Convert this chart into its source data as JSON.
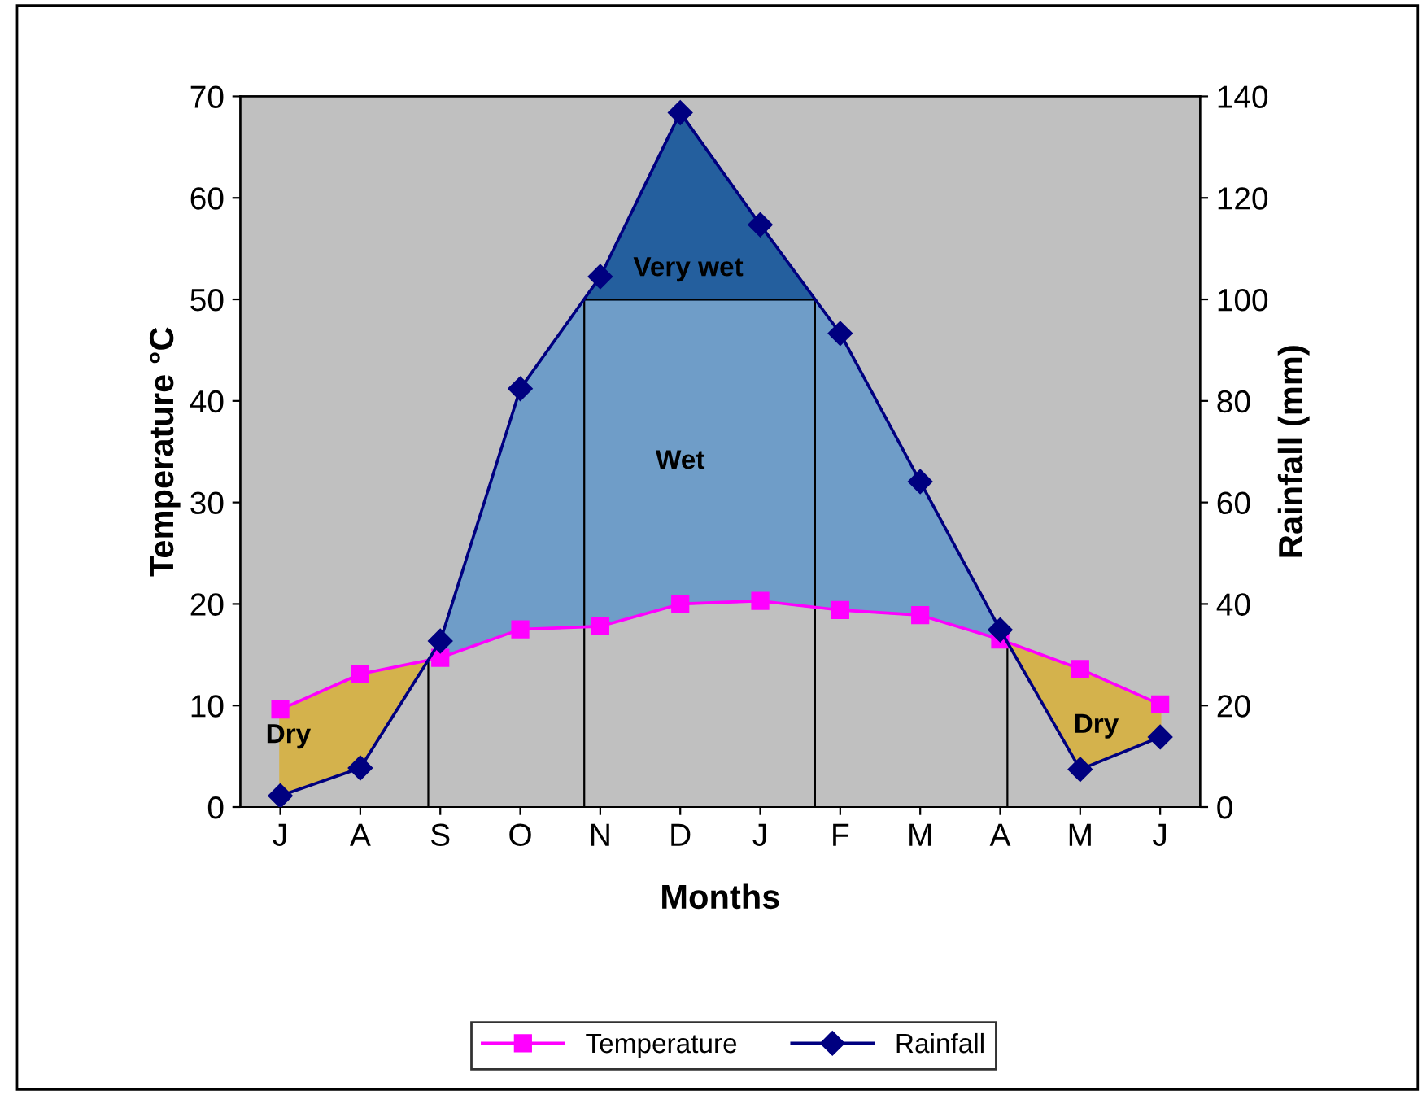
{
  "chart_data": {
    "type": "line",
    "xlabel": "Months",
    "ylabel": "Temperature °C",
    "y2label": "Rainfall (mm)",
    "categories": [
      "J",
      "A",
      "S",
      "O",
      "N",
      "D",
      "J",
      "F",
      "M",
      "A",
      "M",
      "J"
    ],
    "series": [
      {
        "name": "Temperature",
        "color": "#ff00ff",
        "marker": "square",
        "values": [
          9.6,
          13.1,
          14.7,
          17.5,
          17.8,
          20.0,
          20.3,
          19.4,
          18.9,
          16.5,
          13.6,
          10.1
        ]
      },
      {
        "name": "Rainfall",
        "color": "#000080",
        "marker": "diamond",
        "axis": "y2",
        "values": [
          2.2,
          7.7,
          32.7,
          82.4,
          104.5,
          136.8,
          114.7,
          93.3,
          64.1,
          34.9,
          7.4,
          13.8
        ]
      }
    ],
    "ylim": [
      0,
      70
    ],
    "yticks": [
      0,
      10,
      20,
      30,
      40,
      50,
      60,
      70
    ],
    "y2lim": [
      0,
      140
    ],
    "y2ticks": [
      0,
      20,
      40,
      60,
      80,
      100,
      120,
      140
    ],
    "ref_lines": [
      {
        "axis": "y2",
        "value": 100
      }
    ],
    "annotations": [
      "Dry",
      "Wet",
      "Very wet",
      "Dry"
    ],
    "legend": "bottom",
    "grid": false
  }
}
